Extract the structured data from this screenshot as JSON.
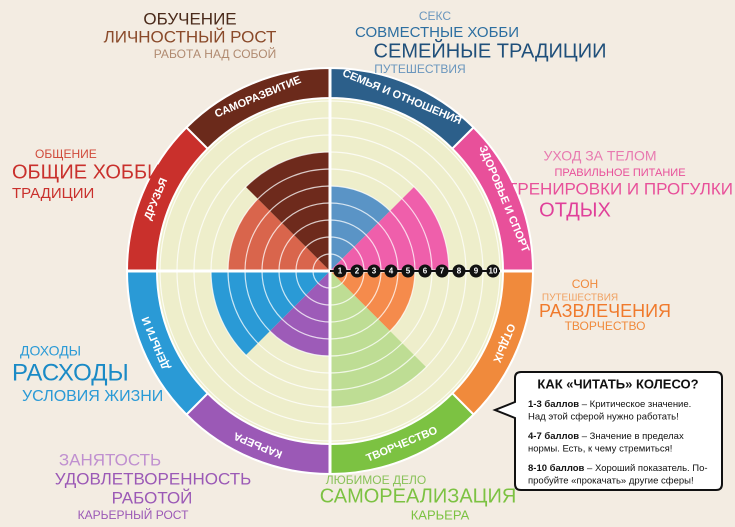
{
  "chart_data": {
    "type": "polar-bar",
    "categories": [
      "СЕМЬЯ И ОТНОШЕНИЯ",
      "ЗДОРОВЬЕ И СПОРТ",
      "ОТДЫХ",
      "ТВОРЧЕСТВО",
      "КАРЬЕРА",
      "ДЕНЬГИ И",
      "ДРУЗЬЯ",
      "САМОРАЗВИТИЕ"
    ],
    "ring_colors": [
      "#2c5f8a",
      "#e8509a",
      "#f08a3c",
      "#7cc242",
      "#9b59b6",
      "#2a9ad6",
      "#c9302c",
      "#6b2a1b"
    ],
    "colors": [
      "#5a94c6",
      "#ef5fab",
      "#f58b4c",
      "#bedd94",
      "#9d5bb8",
      "#2a9ad6",
      "#d9654c",
      "#6e2a1c"
    ],
    "values": [
      5,
      7,
      5,
      8,
      5,
      7,
      6,
      7
    ],
    "rlim": [
      0,
      10
    ],
    "rticks": [
      1,
      2,
      3,
      4,
      5,
      6,
      7,
      8,
      9,
      10
    ],
    "grid": true,
    "annotations": [
      [
        {
          "text": "ОБУЧЕНИЕ",
          "color": "#4a2a1a"
        },
        {
          "text": "ЛИЧНОСТНЫЙ РОСТ",
          "color": "#8a4a2a"
        },
        {
          "text": "РАБОТА НАД СОБОЙ",
          "color": "#b08a70"
        }
      ],
      [
        {
          "text": "СЕКС",
          "color": "#6a96bd"
        },
        {
          "text": "СОВМЕСТНЫЕ ХОББИ",
          "color": "#2c6ea0"
        },
        {
          "text": "СЕМЕЙНЫЕ ТРАДИЦИИ",
          "color": "#1f4f7a"
        },
        {
          "text": "ПУТЕШЕСТВИЯ",
          "color": "#6a96bd"
        }
      ],
      [
        {
          "text": "ОБЩЕНИЕ",
          "color": "#d04a3a"
        },
        {
          "text": "ОБЩИЕ ХОББИ",
          "color": "#c9302c"
        },
        {
          "text": "ТРАДИЦИИ",
          "color": "#c9302c"
        }
      ],
      [
        {
          "text": "УХОД ЗА ТЕЛОМ",
          "color": "#e87ab0"
        },
        {
          "text": "ПРАВИЛЬНОЕ ПИТАНИЕ",
          "color": "#e8509a"
        },
        {
          "text": "ТРЕНИРОВКИ И ПРОГУЛКИ",
          "color": "#e8509a"
        },
        {
          "text": "ОТДЫХ",
          "color": "#e0409a"
        }
      ],
      [
        {
          "text": "СОН",
          "color": "#f08a3c"
        },
        {
          "text": "ПУТЕШЕСТВИЯ",
          "color": "#f0a060"
        },
        {
          "text": "РАЗВЛЕЧЕНИЯ",
          "color": "#f07a2c"
        },
        {
          "text": "ТВОРЧЕСТВО",
          "color": "#f08a3c"
        }
      ],
      [
        {
          "text": "ДОХОДЫ",
          "color": "#2a9ad6"
        },
        {
          "text": "РАСХОДЫ",
          "color": "#1a8ac6"
        },
        {
          "text": "УСЛОВИЯ ЖИЗНИ",
          "color": "#2a9ad6"
        }
      ],
      [
        {
          "text": "ЗАНЯТОСТЬ",
          "color": "#c090d0"
        },
        {
          "text": "УДОВЛЕТВОРЕННОСТЬ",
          "color": "#9b59b6"
        },
        {
          "text": "РАБОТОЙ",
          "color": "#9b59b6"
        },
        {
          "text": "КАРЬЕРНЫЙ РОСТ",
          "color": "#9b59b6"
        }
      ],
      [
        {
          "text": "ЛЮБИМОЕ ДЕЛО",
          "color": "#8ac25a"
        },
        {
          "text": "САМОРЕАЛИЗАЦИЯ",
          "color": "#7cc242"
        },
        {
          "text": "КАРЬЕРА",
          "color": "#7cc242"
        }
      ]
    ],
    "legend": {
      "title": "КАК «ЧИТАТЬ» КОЛЕСО?",
      "items": [
        {
          "label": "1-3 баллов",
          "lines": [
            " – Критическое значение.",
            "Над этой сферой нужно работать!"
          ]
        },
        {
          "label": "4-7 баллов",
          "lines": [
            " – Значение в пределах",
            "нормы. Есть, к чему стремиться!"
          ]
        },
        {
          "label": "8-10 баллов",
          "lines": [
            " – Хороший показатель. По-",
            "пробуйте «прокачать» другие сферы!"
          ]
        }
      ]
    }
  }
}
